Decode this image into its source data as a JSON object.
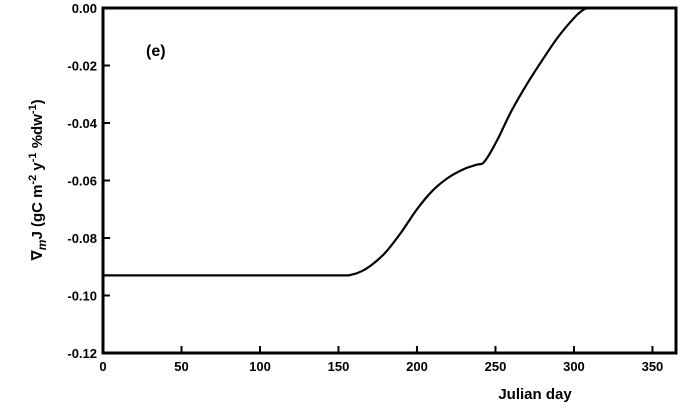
{
  "chart_data": {
    "type": "line",
    "panel_label": "(e)",
    "xlabel": "Julian day",
    "ylabel": {
      "nabla": "∇",
      "sub": "m",
      "main": "J (gC m",
      "sup1": "-2",
      "mid": " y",
      "sup2": "-1",
      "end": " %dw",
      "sup3": "-1",
      "close": ")"
    },
    "xlim": [
      0,
      365
    ],
    "ylim": [
      -0.12,
      0.0
    ],
    "xticks": [
      0,
      50,
      100,
      150,
      200,
      250,
      300,
      350
    ],
    "yticks": [
      0.0,
      -0.02,
      -0.04,
      -0.06,
      -0.08,
      -0.1,
      -0.12
    ],
    "ytick_labels": [
      "0.00",
      "-0.02",
      "-0.04",
      "-0.06",
      "-0.08",
      "-0.10",
      "-0.12"
    ],
    "grid": false,
    "series": [
      {
        "color": "#000000",
        "x": [
          0,
          50,
          100,
          150,
          158,
          165,
          172,
          180,
          190,
          200,
          210,
          220,
          230,
          238,
          242,
          246,
          252,
          260,
          270,
          280,
          290,
          300,
          305,
          309,
          320,
          365
        ],
        "y": [
          -0.093,
          -0.093,
          -0.093,
          -0.093,
          -0.0928,
          -0.0915,
          -0.089,
          -0.085,
          -0.078,
          -0.07,
          -0.0635,
          -0.059,
          -0.056,
          -0.0545,
          -0.054,
          -0.051,
          -0.045,
          -0.036,
          -0.0265,
          -0.018,
          -0.01,
          -0.0035,
          -0.001,
          0.0,
          0.0,
          0.0
        ]
      }
    ]
  }
}
